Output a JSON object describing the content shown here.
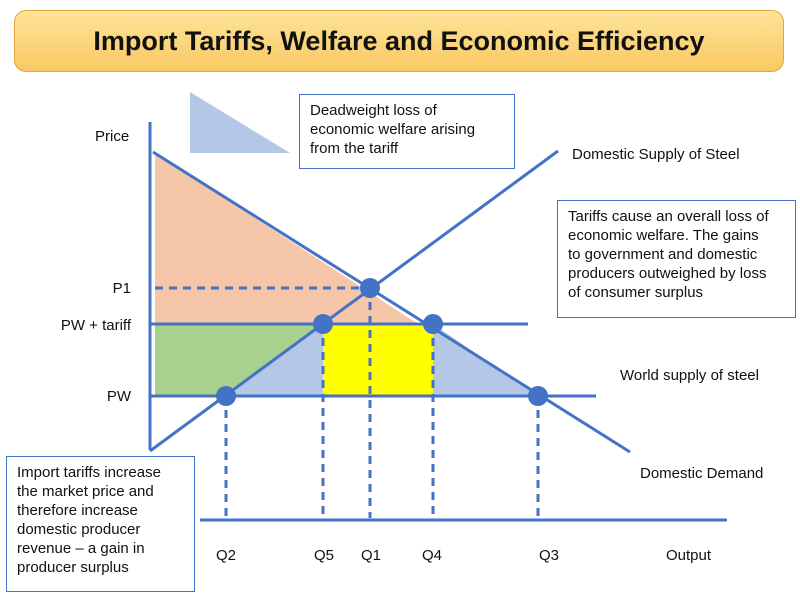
{
  "title": "Import Tariffs, Welfare and Economic Efficiency",
  "axis": {
    "y_label": "Price",
    "x_label": "Output"
  },
  "price_labels": {
    "p1": "P1",
    "pw_tariff": "PW + tariff",
    "pw": "PW"
  },
  "quantity_labels": {
    "q2": "Q2",
    "q5": "Q5",
    "q1": "Q1",
    "q4": "Q4",
    "q3": "Q3"
  },
  "curve_labels": {
    "domestic_supply": "Domestic Supply of Steel",
    "world_supply": "World supply of steel",
    "domestic_demand": "Domestic Demand"
  },
  "notes": {
    "deadweight_legend": "Deadweight loss of\neconomic welfare arising\nfrom the tariff",
    "overall_loss": "Tariffs cause an overall loss of\neconomic welfare. The gains\nto government and domestic\nproducers outweighed by loss\nof consumer surplus",
    "producer_gain": "Import tariffs increase\nthe market price and\ntherefore increase\ndomestic producer\nrevenue – a gain in\nproducer surplus"
  },
  "colors": {
    "line": "#4472c4",
    "consumer_surplus": "#f6c6a8",
    "producer_gain": "#a9d18e",
    "tariff_revenue": "#ffff00",
    "deadweight_loss": "#b4c7e7",
    "point": "#4472c4"
  }
}
